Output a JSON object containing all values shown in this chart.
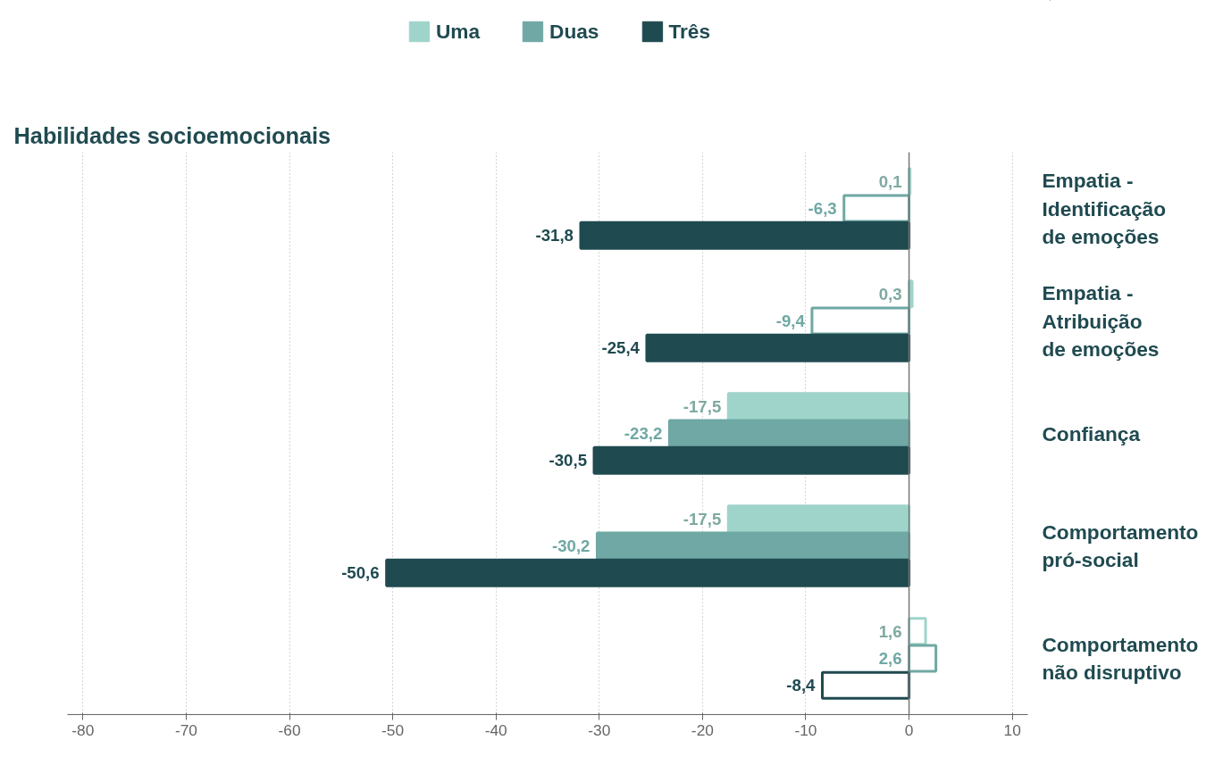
{
  "chart_data": {
    "type": "bar",
    "orientation": "horizontal",
    "title": "Habilidades socioemocionais",
    "categories": [
      "Empatia -\nIdentificação\nde emoções",
      "Empatia -\nAtribuição\nde emoções",
      "Confiança",
      "Comportamento\npró-social",
      "Comportamento\nnão disruptivo"
    ],
    "series": [
      {
        "name": "Uma",
        "color": "#9fd4ca",
        "values": [
          0.1,
          0.3,
          -17.5,
          -17.5,
          1.6
        ],
        "value_labels": [
          "0,1",
          "0,3",
          "-17,5",
          "-17,5",
          "1,6"
        ],
        "colors": [
          "#9fd4ca",
          "#9fd4ca",
          "#9fd4ca",
          "#9fd4ca",
          "#ffffff"
        ]
      },
      {
        "name": "Duas",
        "color": "#6fa8a4",
        "values": [
          -6.3,
          -9.4,
          -23.2,
          -30.2,
          2.6
        ],
        "value_labels": [
          "-6,3",
          "-9,4",
          "-23,2",
          "-30,2",
          "2,6"
        ],
        "colors": [
          "#ffffff",
          "#ffffff",
          "#6fa8a4",
          "#6fa8a4",
          "#ffffff"
        ]
      },
      {
        "name": "Três",
        "color": "#1f4a50",
        "values": [
          -31.8,
          -25.4,
          -30.5,
          -50.6,
          -8.4
        ],
        "value_labels": [
          "-31,8",
          "-25,4",
          "-30,5",
          "-50,6",
          "-8,4"
        ],
        "colors": [
          "#1f4a50",
          "#1f4a50",
          "#1f4a50",
          "#1f4a50",
          "#ffffff"
        ]
      }
    ],
    "xlim": [
      -81.5,
      11.5
    ],
    "xticks": [
      -80,
      -70,
      -60,
      -50,
      -40,
      -30,
      -20,
      -10,
      0,
      10
    ],
    "ref_lines": [
      {
        "axis": "x",
        "value": 0,
        "color": "#777777"
      }
    ],
    "grid": "x",
    "legend": "top"
  }
}
